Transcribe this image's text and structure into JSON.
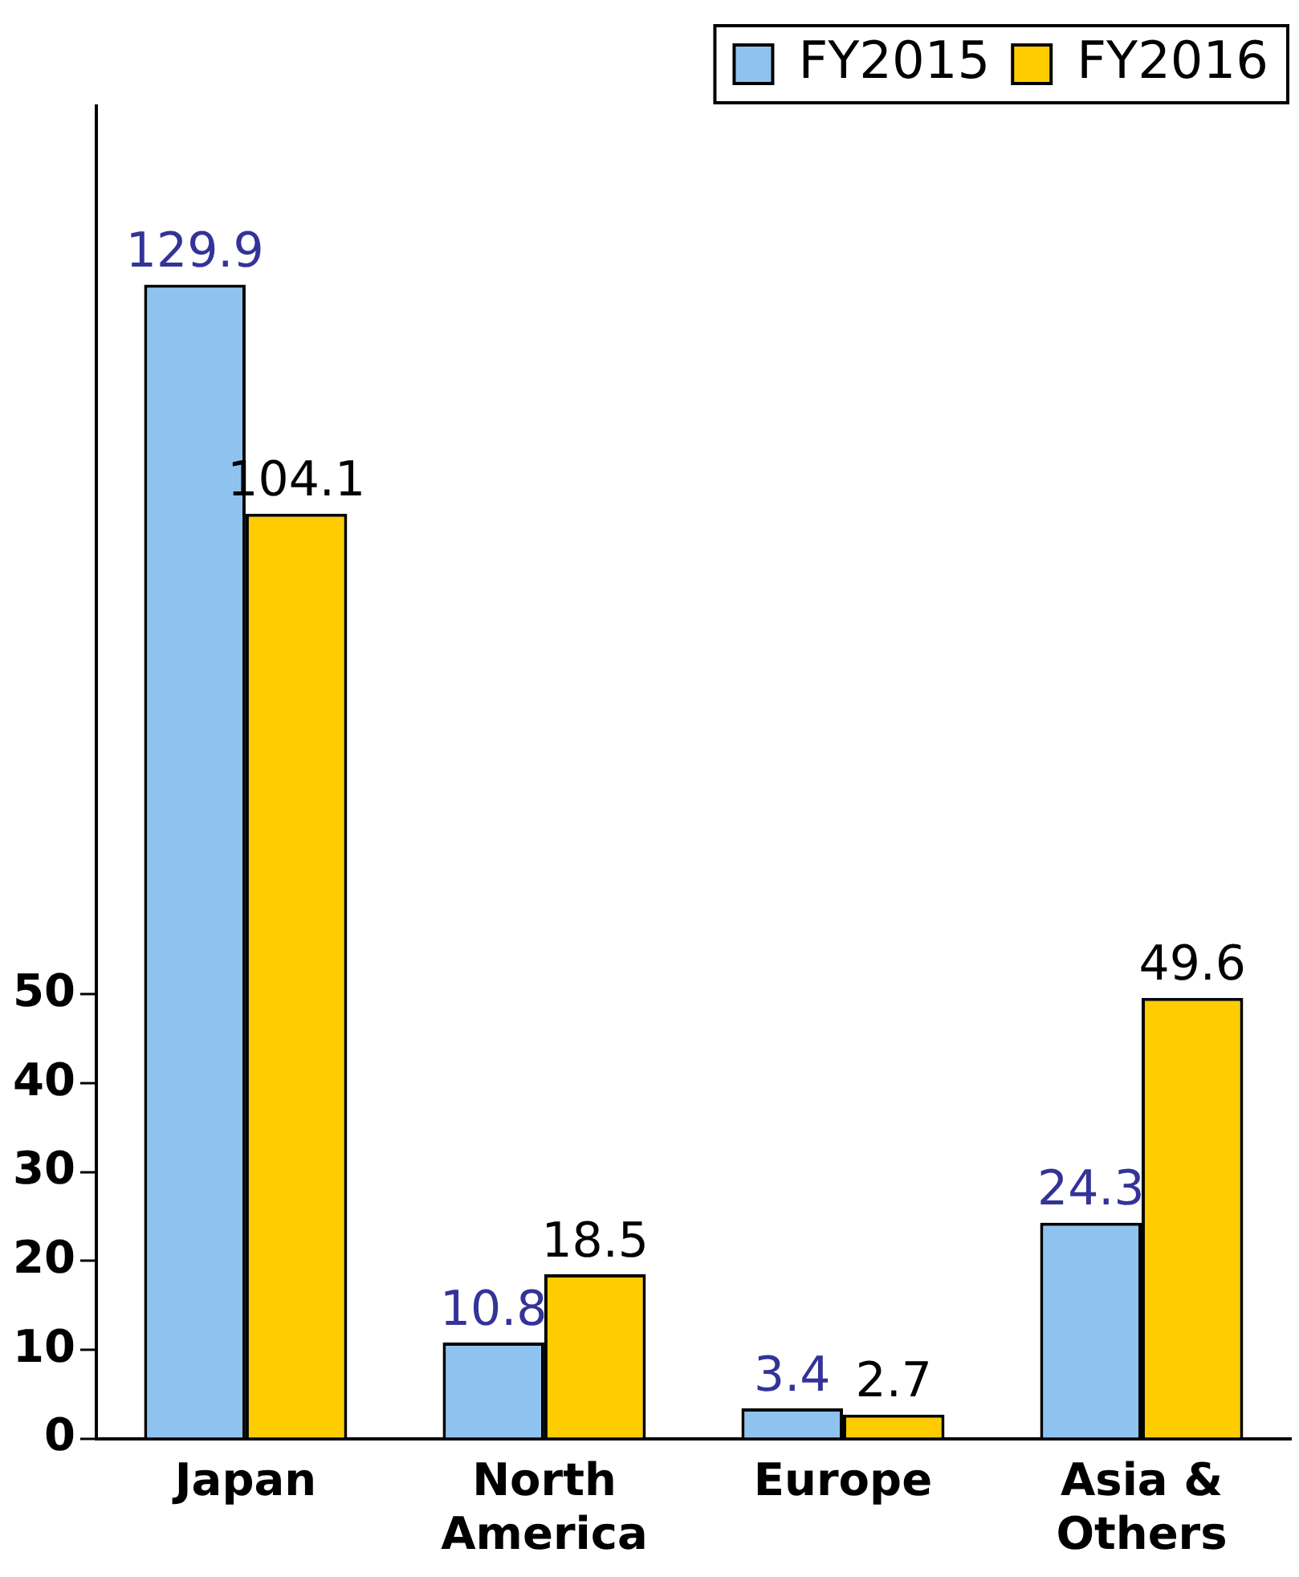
{
  "chart_data": {
    "type": "bar",
    "categories": [
      "Japan",
      "North America",
      "Europe",
      "Asia & Others"
    ],
    "series": [
      {
        "name": "FY2015",
        "color": "#8fc3ef",
        "values": [
          129.9,
          10.8,
          3.4,
          24.3
        ]
      },
      {
        "name": "FY2016",
        "color": "#ffcc00",
        "values": [
          104.1,
          18.5,
          2.7,
          49.6
        ]
      }
    ],
    "ylim": [
      0,
      150
    ],
    "yticks": [
      0,
      10,
      20,
      30,
      40,
      50
    ],
    "data_labels": true,
    "legend": "top right",
    "grid": false
  }
}
